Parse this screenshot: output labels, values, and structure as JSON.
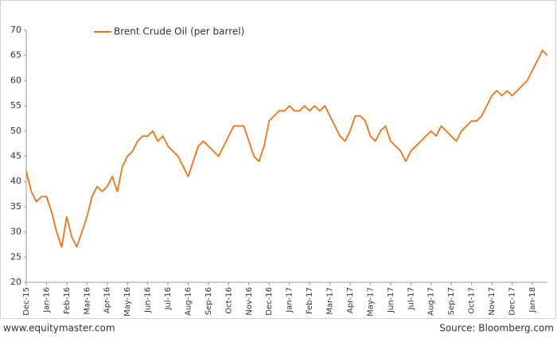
{
  "chart_data": {
    "type": "line",
    "categories": [
      "Dec-15",
      null,
      null,
      null,
      "Jan-16",
      null,
      null,
      null,
      "Feb-16",
      null,
      null,
      null,
      "Mar-16",
      null,
      null,
      null,
      "Apr-16",
      null,
      null,
      null,
      "May-16",
      null,
      null,
      null,
      "Jun-16",
      null,
      null,
      null,
      "Jul-16",
      null,
      null,
      null,
      "Aug-16",
      null,
      null,
      null,
      "Sep-16",
      null,
      null,
      null,
      "Oct-16",
      null,
      null,
      null,
      "Nov-16",
      null,
      null,
      null,
      "Dec-16",
      null,
      null,
      null,
      "Jan-17",
      null,
      null,
      null,
      "Feb-17",
      null,
      null,
      null,
      "Mar-17",
      null,
      null,
      null,
      "Apr-17",
      null,
      null,
      null,
      "May-17",
      null,
      null,
      null,
      "Jun-17",
      null,
      null,
      null,
      "Jul-17",
      null,
      null,
      null,
      "Aug-17",
      null,
      null,
      null,
      "Sep-17",
      null,
      null,
      null,
      "Oct-17",
      null,
      null,
      null,
      "Nov-17",
      null,
      null,
      null,
      "Dec-17",
      null,
      null,
      null,
      "Jan-18",
      null,
      null,
      null
    ],
    "series": [
      {
        "name": "Brent Crude Oil (per barrel)",
        "color": "#e8741c",
        "values": [
          42,
          38,
          36,
          37,
          37,
          34,
          30,
          27,
          33,
          29,
          27,
          30,
          33,
          37,
          39,
          38,
          39,
          41,
          38,
          43,
          45,
          46,
          48,
          49,
          49,
          50,
          48,
          49,
          47,
          46,
          45,
          43,
          41,
          44,
          47,
          48,
          47,
          46,
          45,
          47,
          49,
          51,
          51,
          51,
          48,
          45,
          44,
          47,
          52,
          53,
          54,
          54,
          55,
          54,
          54,
          55,
          54,
          55,
          54,
          55,
          53,
          51,
          49,
          48,
          50,
          53,
          53,
          52,
          49,
          48,
          50,
          51,
          48,
          47,
          46,
          44,
          46,
          47,
          48,
          49,
          50,
          49,
          51,
          50,
          49,
          48,
          50,
          51,
          52,
          52,
          53,
          55,
          57,
          58,
          57,
          58,
          57,
          58,
          59,
          60,
          62,
          64,
          66,
          65
        ]
      }
    ],
    "ylim": [
      20,
      70
    ],
    "yticks": [
      20,
      25,
      30,
      35,
      40,
      45,
      50,
      55,
      60,
      65,
      70
    ],
    "legend": "top-left",
    "footer_left": "www.equitymaster.com",
    "footer_right": "Source: Bloomberg.com"
  }
}
